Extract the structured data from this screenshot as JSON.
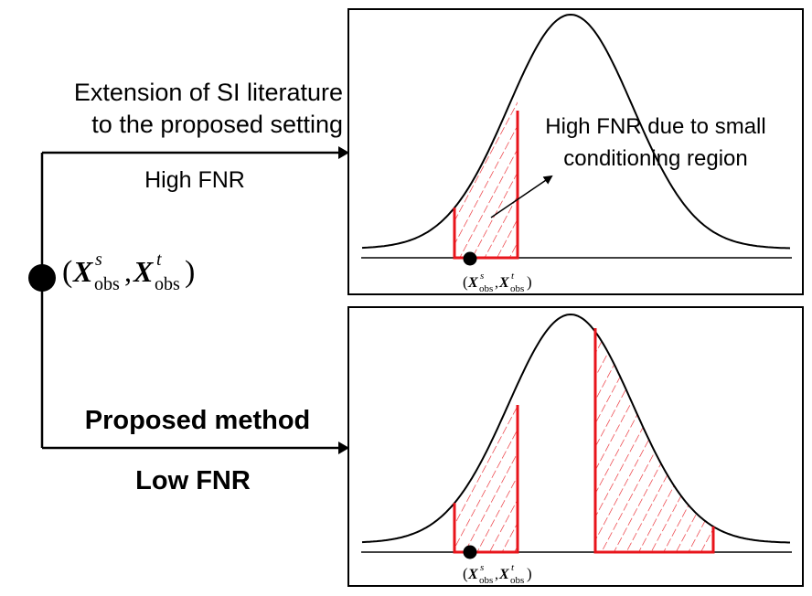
{
  "left_panel": {
    "extension_line1": "Extension of SI literature",
    "extension_line2": "to the proposed setting",
    "high_fnr_label": "High FNR",
    "proposed_label": "Proposed method",
    "low_fnr_label": "Low FNR"
  },
  "observation": {
    "bold_var": "X",
    "sub": "obs",
    "sup_source": "s",
    "sup_target": "t"
  },
  "top_panel": {
    "annotation_line1": "High FNR due to small",
    "annotation_line2": "conditioning region"
  },
  "colors": {
    "curve": "#000000",
    "region": "#e8141b",
    "hatch": "#e8141b",
    "dot": "#000000"
  }
}
